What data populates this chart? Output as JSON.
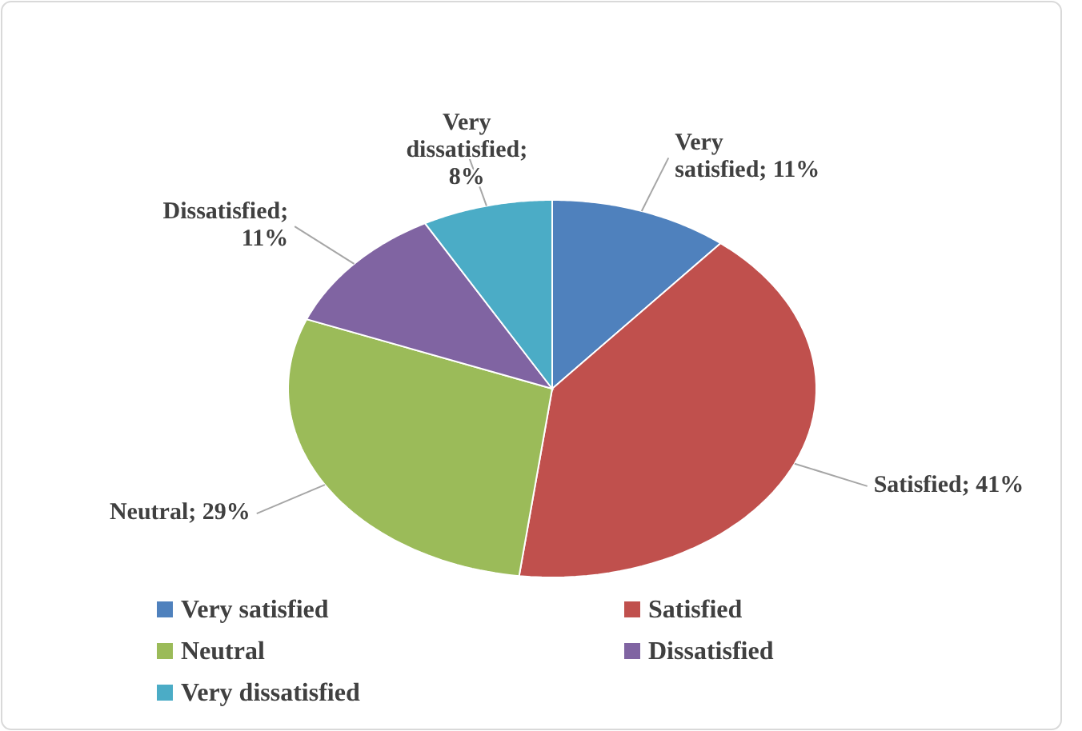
{
  "chart_data": {
    "type": "pie",
    "categories": [
      "Very satisfied",
      "Satisfied",
      "Neutral",
      "Dissatisfied",
      "Very dissatisfied"
    ],
    "values": [
      11,
      41,
      29,
      11,
      8
    ],
    "value_labels": [
      "Very satisfied; 11%",
      "Satisfied; 41%",
      "Neutral; 29%",
      "Dissatisfied; 11%",
      "Very dissatisfied; 8%"
    ],
    "colors": [
      "#4f81bd",
      "#c0504d",
      "#9bbb59",
      "#8064a2",
      "#4bacc6"
    ],
    "legend": "bottom"
  }
}
